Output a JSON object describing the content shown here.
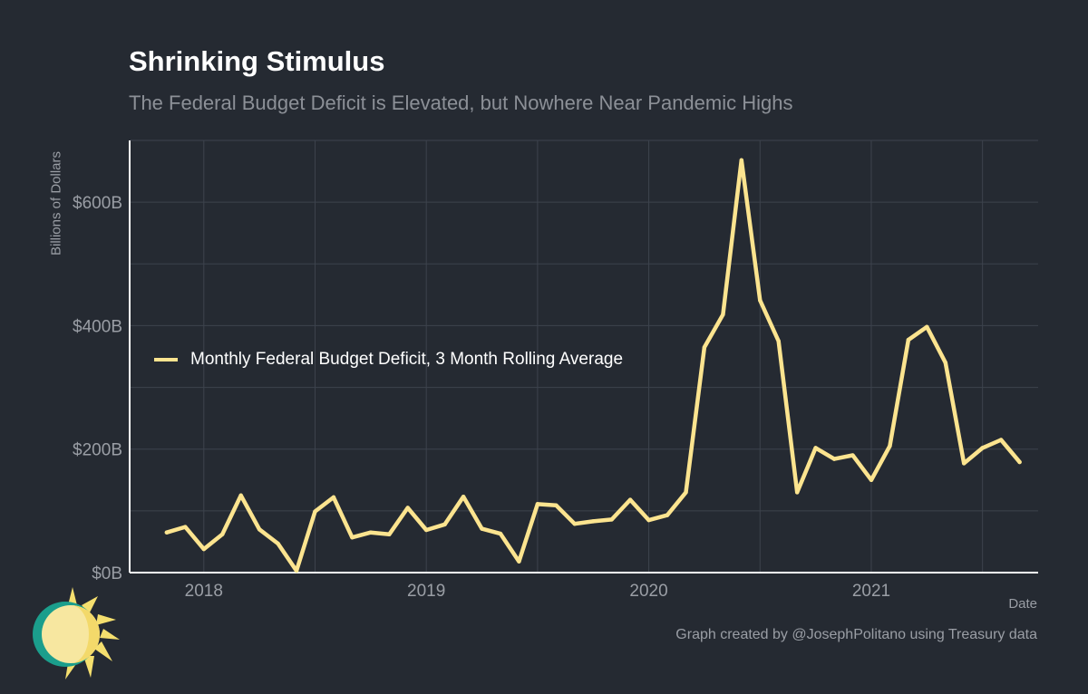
{
  "header": {
    "title": "Shrinking Stimulus",
    "subtitle": "The Federal Budget Deficit is Elevated, but Nowhere Near Pandemic Highs"
  },
  "caption": "Graph created by @JosephPolitano using Treasury data",
  "colors": {
    "background": "#252a32",
    "line": "#fce48f",
    "grid": "#3d434d",
    "axis": "#ffffff",
    "text_muted": "#9a9ea5"
  },
  "chart_data": {
    "type": "line",
    "title": "Shrinking Stimulus",
    "subtitle": "The Federal Budget Deficit is Elevated, but Nowhere Near Pandemic Highs",
    "xlabel": "Date",
    "ylabel": "Billions of Dollars",
    "ylim": [
      0,
      700
    ],
    "xlim": [
      "2017-09",
      "2021-10"
    ],
    "y_ticks": [
      0,
      200,
      400,
      600
    ],
    "y_tick_labels": [
      "$0B",
      "$200B",
      "$400B",
      "$600B"
    ],
    "x_ticks": [
      "2018",
      "2019",
      "2020",
      "2021"
    ],
    "grid": true,
    "legend_position": "left-middle",
    "series": [
      {
        "name": "Monthly Federal Budget Deficit, 3 Month Rolling Average",
        "x": [
          "2017-11",
          "2017-12",
          "2018-01",
          "2018-02",
          "2018-03",
          "2018-04",
          "2018-05",
          "2018-06",
          "2018-07",
          "2018-08",
          "2018-09",
          "2018-10",
          "2018-11",
          "2018-12",
          "2019-01",
          "2019-02",
          "2019-03",
          "2019-04",
          "2019-05",
          "2019-06",
          "2019-07",
          "2019-08",
          "2019-09",
          "2019-10",
          "2019-11",
          "2019-12",
          "2020-01",
          "2020-02",
          "2020-03",
          "2020-04",
          "2020-05",
          "2020-06",
          "2020-07",
          "2020-08",
          "2020-09",
          "2020-10",
          "2020-11",
          "2020-12",
          "2021-01",
          "2021-02",
          "2021-03",
          "2021-04",
          "2021-05",
          "2021-06",
          "2021-07",
          "2021-08",
          "2021-09"
        ],
        "values": [
          65,
          74,
          38,
          62,
          125,
          70,
          47,
          3,
          99,
          122,
          57,
          65,
          62,
          105,
          69,
          78,
          123,
          71,
          63,
          18,
          111,
          109,
          79,
          83,
          86,
          118,
          85,
          93,
          130,
          365,
          418,
          668,
          441,
          375,
          130,
          202,
          184,
          190,
          150,
          205,
          377,
          398,
          340,
          177,
          202,
          215,
          179
        ]
      }
    ]
  }
}
